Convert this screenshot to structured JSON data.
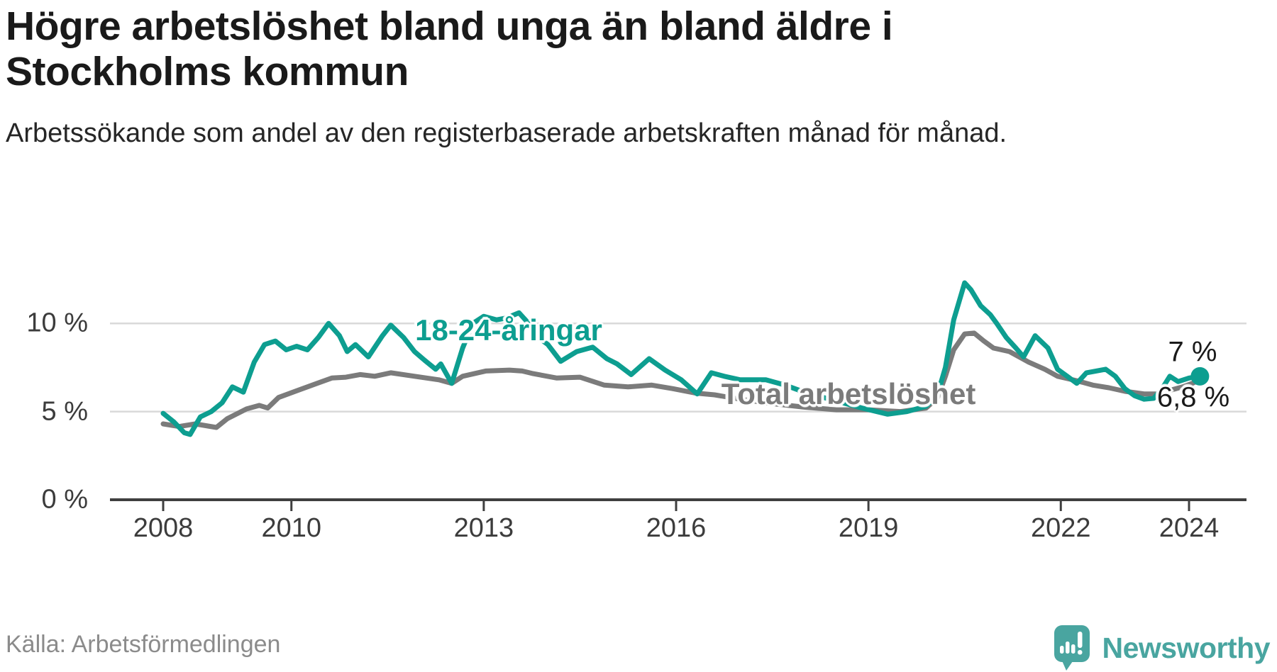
{
  "header": {
    "title": "Högre arbetslöshet bland unga än bland äldre i Stockholms kommun",
    "subtitle": "Arbetssökande som andel av den registerbaserade arbetskraften månad för månad."
  },
  "source": {
    "label": "Källa: Arbetsförmedlingen"
  },
  "branding": {
    "name": "Newsworthy",
    "logo_color": "#49a5a0",
    "logo_icon": "bar-chart-speech-bubble"
  },
  "chart_data": {
    "type": "line",
    "title": "Högre arbetslöshet bland unga än bland äldre i Stockholms kommun",
    "subtitle": "Arbetssökande som andel av den registerbaserade arbetskraften månad för månad.",
    "xlabel": "",
    "ylabel": "",
    "grid": "horizontal-gridlines-at-5-and-10",
    "legend_position": "labels-on-lines",
    "xlim": [
      2007.2,
      2024.9
    ],
    "ylim": [
      0,
      13
    ],
    "x_ticks": [
      2008,
      2010,
      2013,
      2016,
      2019,
      2022,
      2024
    ],
    "x_tick_labels": [
      "2008",
      "2010",
      "2013",
      "2016",
      "2019",
      "2022",
      "2024"
    ],
    "y_ticks": [
      0,
      5,
      10
    ],
    "y_tick_labels": [
      "0 %",
      "5 %",
      "10 %"
    ],
    "colors": {
      "grid": "#d9d9d9",
      "axis": "#3f3f3f",
      "tick_text": "#3c3c3c"
    },
    "series": [
      {
        "name": "Total arbetslöshet",
        "color": "#7b7b7b",
        "end_label": "6,8 %",
        "end_dot": false,
        "points": [
          [
            2008.0,
            4.3
          ],
          [
            2008.25,
            4.15
          ],
          [
            2008.5,
            4.3
          ],
          [
            2008.83,
            4.1
          ],
          [
            2009.0,
            4.6
          ],
          [
            2009.3,
            5.15
          ],
          [
            2009.5,
            5.35
          ],
          [
            2009.63,
            5.2
          ],
          [
            2009.8,
            5.8
          ],
          [
            2010.1,
            6.2
          ],
          [
            2010.4,
            6.6
          ],
          [
            2010.63,
            6.9
          ],
          [
            2010.85,
            6.95
          ],
          [
            2011.07,
            7.1
          ],
          [
            2011.3,
            7.0
          ],
          [
            2011.55,
            7.2
          ],
          [
            2011.92,
            7.0
          ],
          [
            2012.3,
            6.8
          ],
          [
            2012.5,
            6.6
          ],
          [
            2012.67,
            7.0
          ],
          [
            2013.03,
            7.3
          ],
          [
            2013.4,
            7.35
          ],
          [
            2013.6,
            7.3
          ],
          [
            2013.77,
            7.15
          ],
          [
            2014.14,
            6.9
          ],
          [
            2014.5,
            6.95
          ],
          [
            2014.88,
            6.5
          ],
          [
            2015.25,
            6.4
          ],
          [
            2015.62,
            6.5
          ],
          [
            2015.95,
            6.3
          ],
          [
            2016.3,
            6.05
          ],
          [
            2016.6,
            5.95
          ],
          [
            2017.0,
            5.7
          ],
          [
            2017.5,
            5.45
          ],
          [
            2018.0,
            5.25
          ],
          [
            2018.5,
            5.1
          ],
          [
            2019.0,
            5.1
          ],
          [
            2019.5,
            5.0
          ],
          [
            2019.9,
            5.2
          ],
          [
            2020.08,
            5.8
          ],
          [
            2020.2,
            7.0
          ],
          [
            2020.33,
            8.5
          ],
          [
            2020.5,
            9.4
          ],
          [
            2020.65,
            9.45
          ],
          [
            2020.8,
            9.0
          ],
          [
            2020.95,
            8.6
          ],
          [
            2021.2,
            8.4
          ],
          [
            2021.5,
            7.8
          ],
          [
            2021.75,
            7.4
          ],
          [
            2021.95,
            7.0
          ],
          [
            2022.25,
            6.75
          ],
          [
            2022.5,
            6.5
          ],
          [
            2022.75,
            6.35
          ],
          [
            2023.0,
            6.15
          ],
          [
            2023.3,
            6.0
          ],
          [
            2023.5,
            6.0
          ],
          [
            2023.7,
            6.2
          ],
          [
            2023.9,
            6.4
          ],
          [
            2024.05,
            6.6
          ],
          [
            2024.17,
            6.8
          ]
        ]
      },
      {
        "name": "18-24-åringar",
        "color": "#0d9e90",
        "end_label": "7 %",
        "end_dot": true,
        "points": [
          [
            2008.0,
            4.9
          ],
          [
            2008.17,
            4.4
          ],
          [
            2008.33,
            3.8
          ],
          [
            2008.42,
            3.7
          ],
          [
            2008.58,
            4.7
          ],
          [
            2008.75,
            5.0
          ],
          [
            2008.92,
            5.5
          ],
          [
            2009.08,
            6.4
          ],
          [
            2009.25,
            6.1
          ],
          [
            2009.42,
            7.8
          ],
          [
            2009.58,
            8.8
          ],
          [
            2009.75,
            9.0
          ],
          [
            2009.92,
            8.5
          ],
          [
            2010.08,
            8.7
          ],
          [
            2010.25,
            8.5
          ],
          [
            2010.42,
            9.2
          ],
          [
            2010.58,
            10.0
          ],
          [
            2010.75,
            9.3
          ],
          [
            2010.87,
            8.4
          ],
          [
            2011.0,
            8.8
          ],
          [
            2011.2,
            8.1
          ],
          [
            2011.42,
            9.3
          ],
          [
            2011.55,
            9.9
          ],
          [
            2011.75,
            9.2
          ],
          [
            2011.92,
            8.4
          ],
          [
            2012.08,
            7.9
          ],
          [
            2012.25,
            7.4
          ],
          [
            2012.33,
            7.7
          ],
          [
            2012.5,
            6.6
          ],
          [
            2012.67,
            8.6
          ],
          [
            2012.83,
            10.0
          ],
          [
            2013.0,
            10.4
          ],
          [
            2013.2,
            10.2
          ],
          [
            2013.35,
            10.3
          ],
          [
            2013.55,
            10.6
          ],
          [
            2013.7,
            10.0
          ],
          [
            2013.85,
            9.2
          ],
          [
            2014.0,
            8.8
          ],
          [
            2014.2,
            7.85
          ],
          [
            2014.45,
            8.4
          ],
          [
            2014.7,
            8.65
          ],
          [
            2014.92,
            8.0
          ],
          [
            2015.08,
            7.7
          ],
          [
            2015.3,
            7.1
          ],
          [
            2015.58,
            8.0
          ],
          [
            2015.83,
            7.35
          ],
          [
            2016.08,
            6.8
          ],
          [
            2016.33,
            6.0
          ],
          [
            2016.55,
            7.2
          ],
          [
            2016.75,
            7.0
          ],
          [
            2017.0,
            6.8
          ],
          [
            2017.4,
            6.8
          ],
          [
            2017.7,
            6.5
          ],
          [
            2018.0,
            6.1
          ],
          [
            2018.5,
            5.6
          ],
          [
            2018.9,
            5.2
          ],
          [
            2019.3,
            4.85
          ],
          [
            2019.6,
            5.0
          ],
          [
            2019.9,
            5.3
          ],
          [
            2020.08,
            6.0
          ],
          [
            2020.2,
            7.5
          ],
          [
            2020.33,
            10.2
          ],
          [
            2020.5,
            12.3
          ],
          [
            2020.6,
            11.9
          ],
          [
            2020.75,
            11.0
          ],
          [
            2020.9,
            10.5
          ],
          [
            2021.0,
            10.0
          ],
          [
            2021.15,
            9.2
          ],
          [
            2021.3,
            8.6
          ],
          [
            2021.42,
            8.1
          ],
          [
            2021.6,
            9.3
          ],
          [
            2021.8,
            8.6
          ],
          [
            2021.95,
            7.4
          ],
          [
            2022.1,
            7.0
          ],
          [
            2022.25,
            6.6
          ],
          [
            2022.4,
            7.2
          ],
          [
            2022.55,
            7.3
          ],
          [
            2022.7,
            7.4
          ],
          [
            2022.85,
            7.0
          ],
          [
            2023.0,
            6.3
          ],
          [
            2023.15,
            5.9
          ],
          [
            2023.3,
            5.7
          ],
          [
            2023.45,
            5.75
          ],
          [
            2023.58,
            6.3
          ],
          [
            2023.7,
            7.0
          ],
          [
            2023.83,
            6.7
          ],
          [
            2024.0,
            6.9
          ],
          [
            2024.17,
            7.0
          ]
        ]
      }
    ]
  }
}
